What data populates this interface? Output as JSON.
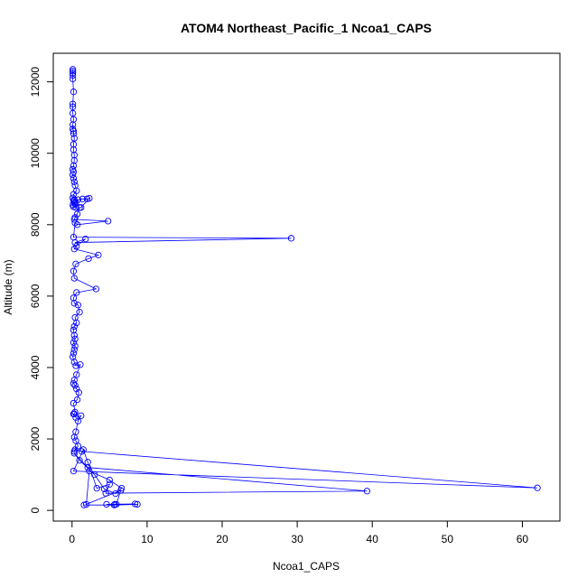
{
  "chart_data": {
    "type": "line",
    "title": "ATOM4 Northeast_Pacific_1 Ncoa1_CAPS",
    "xlabel": "Ncoa1_CAPS",
    "ylabel": "Altitude (m)",
    "xlim": [
      -2.5,
      65.0
    ],
    "ylim": [
      -300,
      12800
    ],
    "xticks": [
      0,
      10,
      20,
      30,
      40,
      50,
      60
    ],
    "yticks": [
      0,
      2000,
      4000,
      6000,
      8000,
      10000,
      12000
    ],
    "series_color": "#0000ff",
    "markers": "open-circle",
    "series": [
      {
        "x": [
          0.1,
          0.1,
          0.1,
          0.1,
          0.1,
          0.2,
          0.1,
          0.1,
          0.1,
          0.2,
          0.1,
          0.1,
          0.2,
          0.2,
          0.3,
          0.2,
          0.2,
          0.3,
          0.3,
          0.2,
          0.1,
          0.2,
          0.1,
          0.2,
          0.3,
          0.4,
          0.6,
          0.2,
          0.1,
          0.3,
          0.2,
          0.3,
          0.5,
          0.3,
          0.1,
          0.2,
          0.5,
          0.8,
          1.4,
          2.0,
          2.3,
          1.2,
          1.0,
          0.7,
          0.4,
          0.3,
          4.8,
          0.7,
          0.4,
          0.2,
          29.2,
          0.4,
          1.8,
          0.6,
          0.3,
          3.5,
          2.2,
          0.5,
          0.2,
          0.3,
          3.2,
          0.6,
          0.2,
          0.3,
          0.8,
          1.0,
          0.4,
          0.6,
          0.3,
          0.2,
          0.3,
          0.4,
          0.2,
          0.4,
          0.3,
          0.2,
          0.1,
          0.3,
          0.5,
          1.1,
          0.6,
          0.3,
          0.2,
          0.4,
          0.6,
          0.9,
          0.7,
          0.2,
          0.4,
          0.3,
          0.2,
          0.5,
          1.2,
          0.8,
          0.5,
          0.3,
          0.5,
          0.8,
          0.3,
          0.4,
          1.3,
          62.0,
          0.2,
          1.5,
          2.1,
          3.3,
          5.0,
          4.5,
          39.3,
          2.1,
          0.3,
          1.0,
          3.0,
          4.3,
          5.8,
          6.6,
          5.0,
          2.3,
          1.9,
          6.5,
          5.9,
          8.4,
          4.6,
          5.7,
          8.7,
          5.6,
          1.6
        ],
        "y": [
          12350,
          12300,
          12250,
          12180,
          12080,
          11720,
          11380,
          11300,
          11120,
          10950,
          10800,
          10680,
          10620,
          10550,
          10420,
          10250,
          10100,
          9950,
          9800,
          9650,
          9550,
          9480,
          9400,
          9300,
          9200,
          9100,
          8950,
          8850,
          8750,
          8700,
          8680,
          8650,
          8620,
          8600,
          8550,
          8500,
          8480,
          8700,
          8720,
          8720,
          8740,
          8480,
          8480,
          8300,
          8200,
          8150,
          8100,
          8000,
          8050,
          7650,
          7620,
          7500,
          7600,
          7400,
          7320,
          7150,
          7050,
          6900,
          6700,
          6500,
          6200,
          6100,
          5950,
          5800,
          5750,
          5550,
          5400,
          5250,
          5150,
          5050,
          4900,
          4800,
          4700,
          4600,
          4500,
          4400,
          4300,
          4150,
          4050,
          4080,
          3800,
          3650,
          3550,
          3500,
          3400,
          3300,
          3100,
          3000,
          2750,
          2700,
          2700,
          2600,
          2650,
          2500,
          2200,
          2050,
          1950,
          1800,
          1650,
          1700,
          1650,
          630,
          1100,
          1700,
          1350,
          620,
          730,
          480,
          540,
          1200,
          1600,
          1400,
          1000,
          600,
          470,
          620,
          850,
          1100,
          170,
          560,
          170,
          180,
          170,
          170,
          170,
          150,
          150
        ]
      }
    ]
  }
}
